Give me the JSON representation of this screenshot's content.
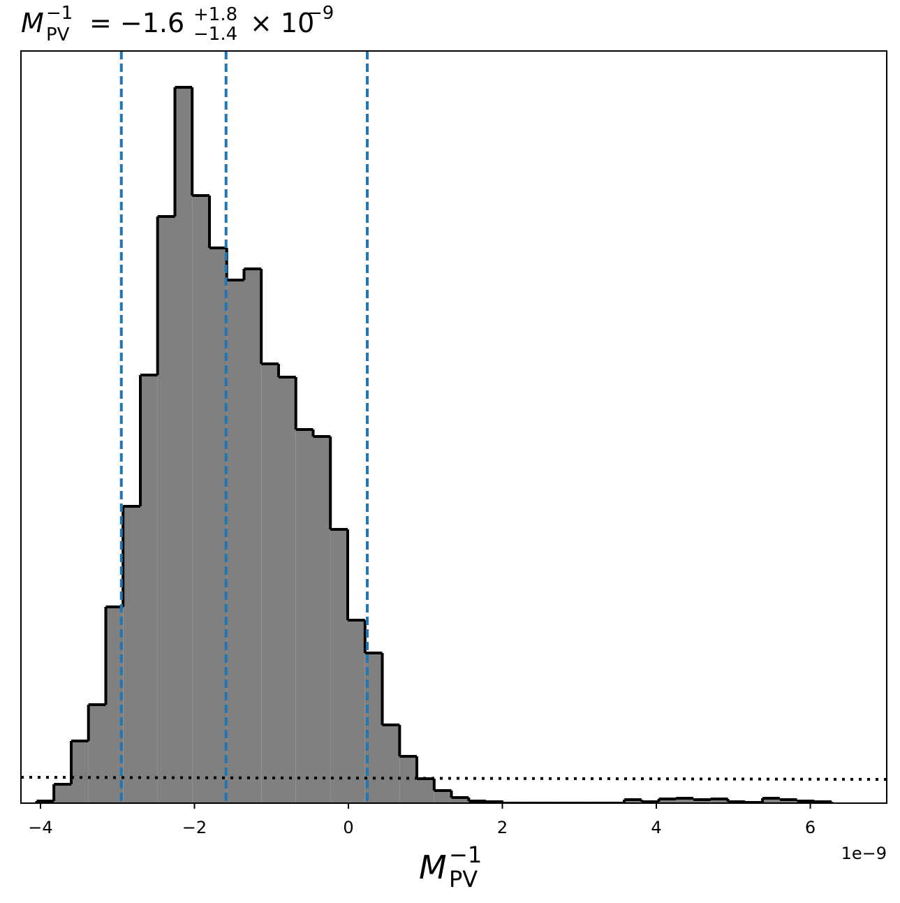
{
  "chart_data": {
    "type": "histogram",
    "title": {
      "symbol": "M",
      "sup": "−1",
      "sub": "PV",
      "equals": "= −1.6",
      "upper": "+1.8",
      "lower": "−1.4",
      "times": "× 10",
      "exp": "−9"
    },
    "x_label": {
      "symbol": "M",
      "sup": "−1",
      "sub": "PV"
    },
    "x_offset_text": "1e−9",
    "bins": [
      -4.05,
      -3.826,
      -3.601,
      -3.377,
      -3.152,
      -2.928,
      -2.703,
      -2.479,
      -2.254,
      -2.03,
      -1.805,
      -1.581,
      -1.356,
      -1.132,
      -0.907,
      -0.683,
      -0.458,
      -0.234,
      -0.009,
      0.216,
      0.44,
      0.665,
      0.889,
      1.114,
      1.338,
      1.563,
      1.787,
      2.012,
      2.236,
      2.461,
      2.685,
      2.91,
      3.134,
      3.359,
      3.583,
      3.808,
      4.032,
      4.257,
      4.481,
      4.706,
      4.93,
      5.155,
      5.379,
      5.604,
      5.828,
      6.053,
      6.277
    ],
    "values": [
      0.6,
      5.4,
      17.8,
      28.2,
      56.2,
      85,
      122.6,
      168,
      205,
      174,
      159,
      149.8,
      153,
      125.8,
      122,
      107,
      105,
      78.4,
      52.4,
      43,
      22.4,
      13.4,
      7,
      3.6,
      1.6,
      0.6,
      0.4,
      0,
      0,
      0,
      0,
      0,
      0,
      0,
      1,
      0.4,
      1.2,
      1.4,
      1,
      1.2,
      0.4,
      0.2,
      1.4,
      1,
      0.6,
      0.4
    ],
    "color": "#808080",
    "edge_color": "#000000",
    "vlines": {
      "values": [
        -2.95,
        -1.59,
        0.245
      ],
      "color": "#1f77b4"
    },
    "reference_line": {
      "x": [
        -4.254,
        6.993
      ],
      "values": [
        7.4,
        6.8
      ],
      "color": "#000000"
    },
    "xlim": [
      -4.254,
      6.993
    ],
    "ylim": [
      0,
      215.4
    ],
    "xticks": [
      {
        "value": -4,
        "label": "−4"
      },
      {
        "value": -2,
        "label": "−2"
      },
      0,
      2,
      4,
      6
    ]
  }
}
